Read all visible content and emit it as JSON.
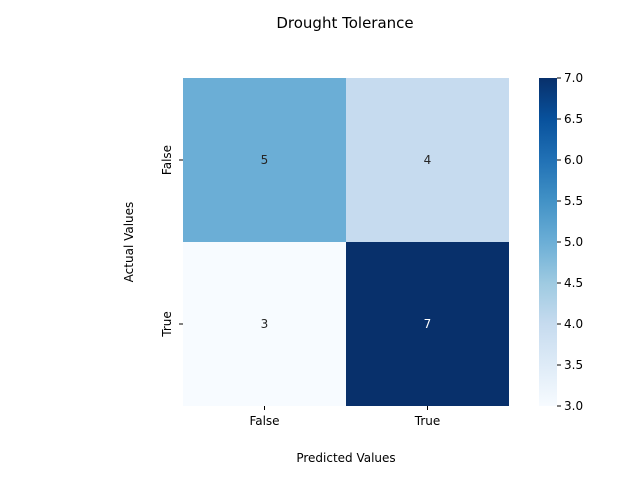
{
  "chart_data": {
    "type": "heatmap",
    "title": "Drought Tolerance",
    "xlabel": "Predicted Values",
    "ylabel": "Actual Values",
    "x_categories": [
      "False",
      "True"
    ],
    "y_categories": [
      "False",
      "True"
    ],
    "values": [
      [
        5,
        4
      ],
      [
        3,
        7
      ]
    ],
    "colorbar": {
      "min": 3.0,
      "max": 7.0,
      "ticks": [
        "3.0",
        "3.5",
        "4.0",
        "4.5",
        "5.0",
        "5.5",
        "6.0",
        "6.5",
        "7.0"
      ]
    },
    "colormap": "Blues"
  }
}
